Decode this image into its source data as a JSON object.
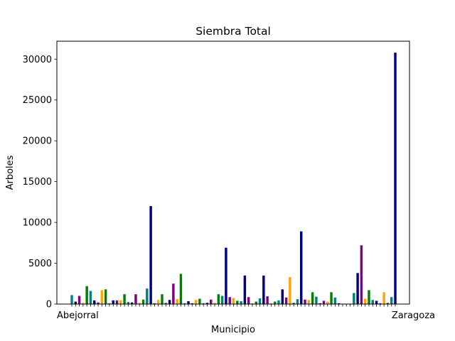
{
  "chart_data": {
    "type": "bar",
    "title": "Siembra Total",
    "xlabel": "Municipio",
    "ylabel": "Arboles",
    "ylim": [
      0,
      32200
    ],
    "yticks": [
      0,
      5000,
      10000,
      15000,
      20000,
      25000,
      30000
    ],
    "ytick_labels": [
      "0",
      "5000",
      "10000",
      "15000",
      "20000",
      "25000",
      "30000"
    ],
    "first_category_label": "Abejorral",
    "last_category_label": "Zaragoza",
    "palette": [
      "#008080",
      "#000080",
      "#800080",
      "#FFA500",
      "#008000"
    ],
    "values": [
      1100,
      300,
      1000,
      150,
      2200,
      1600,
      450,
      200,
      1700,
      1800,
      100,
      450,
      450,
      450,
      1200,
      250,
      200,
      1200,
      150,
      550,
      1900,
      12000,
      100,
      500,
      1200,
      150,
      500,
      2500,
      600,
      3700,
      100,
      350,
      100,
      500,
      650,
      100,
      150,
      550,
      150,
      1200,
      1000,
      6900,
      850,
      750,
      400,
      350,
      3500,
      850,
      100,
      300,
      700,
      3500,
      950,
      100,
      300,
      450,
      1800,
      800,
      3300,
      150,
      600,
      8900,
      550,
      500,
      1450,
      900,
      100,
      400,
      300,
      1450,
      800,
      100,
      50,
      50,
      50,
      1350,
      3800,
      7200,
      650,
      1700,
      500,
      400,
      100,
      1450,
      150,
      850,
      30800
    ]
  }
}
